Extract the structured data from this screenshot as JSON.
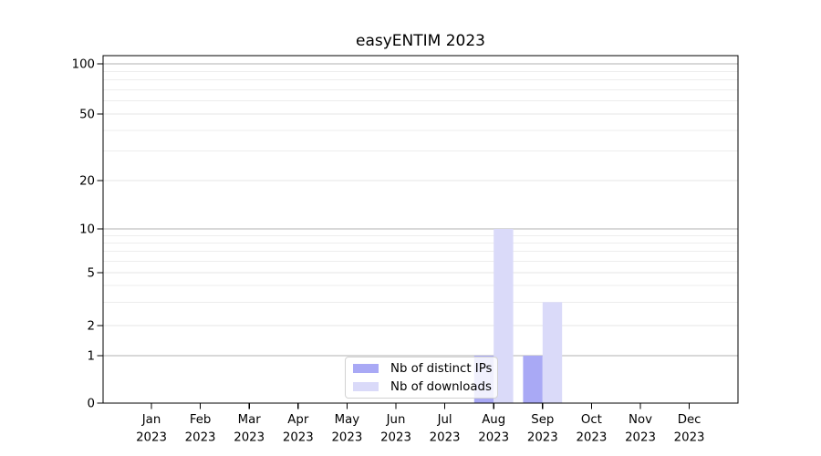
{
  "chart_data": {
    "type": "bar",
    "title": "easyENTIM 2023",
    "categories": [
      "Jan",
      "Feb",
      "Mar",
      "Apr",
      "May",
      "Jun",
      "Jul",
      "Aug",
      "Sep",
      "Oct",
      "Nov",
      "Dec"
    ],
    "year_label": "2023",
    "series": [
      {
        "name": "Nb of distinct IPs",
        "color": "#a9a9f5",
        "values": [
          0,
          0,
          0,
          0,
          0,
          0,
          0,
          1,
          1,
          0,
          0,
          0
        ]
      },
      {
        "name": "Nb of downloads",
        "color": "#dadaf9",
        "values": [
          0,
          0,
          0,
          0,
          0,
          0,
          0,
          10,
          3,
          0,
          0,
          0
        ]
      }
    ],
    "y_ticks": [
      0,
      1,
      2,
      5,
      10,
      20,
      50,
      100
    ],
    "y_minor_ticks": [
      3,
      4,
      6,
      7,
      8,
      9,
      30,
      40,
      60,
      70,
      80,
      90
    ],
    "y_scale": "log-like (log above 1, linear 0-1)",
    "ylim": [
      0,
      112
    ],
    "xlabel": "",
    "ylabel": "",
    "grid": "horizontal",
    "legend_position": "lower center",
    "colors": {
      "grid_major": "#b2b2b2",
      "grid_labeled": "#e4e4e4",
      "grid_minor": "#ededed",
      "axis": "#000000",
      "text": "#000000"
    }
  }
}
